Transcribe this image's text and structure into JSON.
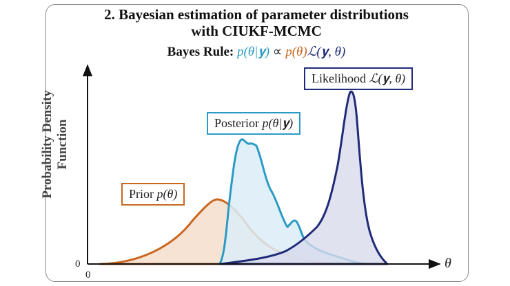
{
  "title_line1": "2. Bayesian estimation of parameter distributions",
  "title_line2": "with CIUKF-MCMC",
  "bayes_rule": {
    "label": "Bayes Rule:",
    "posterior": "p(θ|𝐲)",
    "proportional": "∝",
    "prior": "p(θ)",
    "likelihood": "ℒ(𝐲, θ)"
  },
  "y_axis_label": "Probability Density Function",
  "x_axis_var": "θ",
  "ticks": {
    "y_zero": "0",
    "x_zero": "0"
  },
  "curves": {
    "prior": {
      "label": "Prior",
      "math": "p(θ)",
      "color": "#c9661f",
      "fill": "#f6e3d3"
    },
    "posterior": {
      "label": "Posterior",
      "math": "p(θ|𝐲)",
      "color": "#2a9bc4",
      "fill": "#dcecf7"
    },
    "likelihood": {
      "label": "Likelihood",
      "math": "ℒ(𝐲, θ)",
      "color": "#1f2a78",
      "fill": "#d8dbec"
    }
  },
  "colors": {
    "frame": "#8a8a8a",
    "axis": "#111111"
  }
}
